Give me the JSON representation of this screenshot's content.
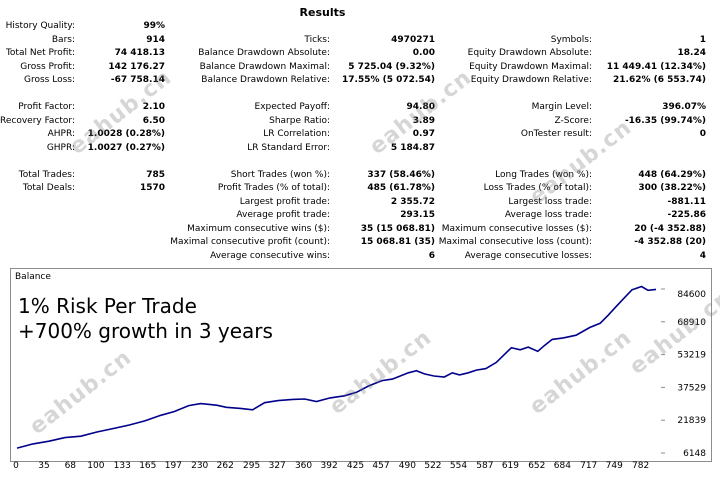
{
  "header": {
    "title": "Results"
  },
  "metrics": [
    {
      "id": "history-quality",
      "label": "History Quality:",
      "value": "99%"
    },
    {
      "id": "bars",
      "label": "Bars:",
      "value": "914"
    },
    {
      "id": "total-net-profit",
      "label": "Total Net Profit:",
      "value": "74 418.13"
    },
    {
      "id": "gross-profit",
      "label": "Gross Profit:",
      "value": "142 176.27"
    },
    {
      "id": "gross-loss",
      "label": "Gross Loss:",
      "value": "-67 758.14"
    },
    {
      "id": "profit-factor",
      "label": "Profit Factor:",
      "value": "2.10"
    },
    {
      "id": "recovery-factor",
      "label": "Recovery Factor:",
      "value": "6.50"
    },
    {
      "id": "ahpr",
      "label": "AHPR:",
      "value": "1.0028 (0.28%)"
    },
    {
      "id": "ghpr",
      "label": "GHPR:",
      "value": "1.0027 (0.27%)"
    },
    {
      "id": "total-trades",
      "label": "Total Trades:",
      "value": "785"
    },
    {
      "id": "total-deals",
      "label": "Total Deals:",
      "value": "1570"
    },
    {
      "id": "ticks",
      "label": "Ticks:",
      "value": "4970271"
    },
    {
      "id": "balance-dd-abs",
      "label": "Balance Drawdown Absolute:",
      "value": "0.00"
    },
    {
      "id": "balance-dd-max",
      "label": "Balance Drawdown Maximal:",
      "value": "5 725.04 (9.32%)"
    },
    {
      "id": "balance-dd-rel",
      "label": "Balance Drawdown Relative:",
      "value": "17.55% (5 072.54)"
    },
    {
      "id": "expected-payoff",
      "label": "Expected Payoff:",
      "value": "94.80"
    },
    {
      "id": "sharpe-ratio",
      "label": "Sharpe Ratio:",
      "value": "3.89"
    },
    {
      "id": "lr-correlation",
      "label": "LR Correlation:",
      "value": "0.97"
    },
    {
      "id": "lr-std-error",
      "label": "LR Standard Error:",
      "value": "5 184.87"
    },
    {
      "id": "short-trades",
      "label": "Short Trades (won %):",
      "value": "337 (58.46%)"
    },
    {
      "id": "profit-trades",
      "label": "Profit Trades (% of total):",
      "value": "485 (61.78%)"
    },
    {
      "id": "largest-profit",
      "label": "Largest profit trade:",
      "value": "2 355.72"
    },
    {
      "id": "average-profit",
      "label": "Average profit trade:",
      "value": "293.15"
    },
    {
      "id": "max-consec-wins",
      "label": "Maximum consecutive wins ($):",
      "value": "35 (15 068.81)"
    },
    {
      "id": "maximal-consec-profit",
      "label": "Maximal consecutive profit (count):",
      "value": "15 068.81 (35)"
    },
    {
      "id": "avg-consec-wins",
      "label": "Average consecutive wins:",
      "value": "6"
    },
    {
      "id": "symbols",
      "label": "Symbols:",
      "value": "1"
    },
    {
      "id": "equity-dd-abs",
      "label": "Equity Drawdown Absolute:",
      "value": "18.24"
    },
    {
      "id": "equity-dd-max",
      "label": "Equity Drawdown Maximal:",
      "value": "11 449.41 (12.34%)"
    },
    {
      "id": "equity-dd-rel",
      "label": "Equity Drawdown Relative:",
      "value": "21.62% (6 553.74)"
    },
    {
      "id": "margin-level",
      "label": "Margin Level:",
      "value": "396.07%"
    },
    {
      "id": "z-score",
      "label": "Z-Score:",
      "value": "-16.35 (99.74%)"
    },
    {
      "id": "ontester-result",
      "label": "OnTester result:",
      "value": "0"
    },
    {
      "id": "long-trades",
      "label": "Long Trades (won %):",
      "value": "448 (64.29%)"
    },
    {
      "id": "loss-trades",
      "label": "Loss Trades (% of total):",
      "value": "300 (38.22%)"
    },
    {
      "id": "largest-loss",
      "label": "Largest loss trade:",
      "value": "-881.11"
    },
    {
      "id": "average-loss",
      "label": "Average loss trade:",
      "value": "-225.86"
    },
    {
      "id": "max-consec-losses",
      "label": "Maximum consecutive losses ($):",
      "value": "20 (-4 352.88)"
    },
    {
      "id": "maximal-consec-loss",
      "label": "Maximal consecutive loss (count):",
      "value": "-4 352.88 (20)"
    },
    {
      "id": "avg-consec-losses",
      "label": "Average consecutive losses:",
      "value": "4"
    }
  ],
  "chart": {
    "panel_label": "Balance",
    "overlay_line1": "1% Risk Per Trade",
    "overlay_line2": "+700% growth in 3 years",
    "watermark_text": "eahub.cn",
    "line_color": "#00008b"
  },
  "chart_data": {
    "type": "line",
    "title": "Balance",
    "y_ticks": [
      "84600",
      "68910",
      "53219",
      "37529",
      "21839",
      "6148"
    ],
    "x_ticks": [
      "0",
      "35",
      "68",
      "100",
      "133",
      "165",
      "197",
      "230",
      "262",
      "295",
      "327",
      "360",
      "392",
      "425",
      "457",
      "490",
      "522",
      "554",
      "587",
      "619",
      "652",
      "684",
      "717",
      "749",
      "782"
    ],
    "ylim": [
      6148,
      84600
    ],
    "xlim": [
      0,
      800
    ],
    "series": [
      {
        "x": [
          0,
          20,
          40,
          60,
          80,
          100,
          120,
          140,
          160,
          180,
          197,
          215,
          230,
          250,
          262,
          280,
          295,
          310,
          327,
          345,
          360,
          375,
          392,
          410,
          425,
          440,
          457,
          470,
          490,
          500,
          510,
          522,
          535,
          545,
          554,
          565,
          575,
          587,
          600,
          619,
          630,
          640,
          652,
          660,
          670,
          684,
          700,
          717,
          730,
          740,
          749,
          760,
          770,
          782,
          790,
          800
        ],
        "y": [
          8500,
          10500,
          11800,
          13500,
          14200,
          16200,
          17800,
          19500,
          21500,
          24200,
          26000,
          28800,
          29800,
          29000,
          28000,
          27500,
          26800,
          30200,
          31200,
          31800,
          32000,
          30800,
          32500,
          33500,
          35200,
          38200,
          40800,
          41500,
          44500,
          45500,
          44000,
          43000,
          42500,
          44500,
          43500,
          44500,
          45800,
          46500,
          49500,
          56500,
          55500,
          56800,
          54800,
          57500,
          60500,
          61200,
          62500,
          66200,
          68200,
          72000,
          75800,
          80200,
          84200,
          85800,
          84000,
          84400
        ]
      }
    ]
  }
}
